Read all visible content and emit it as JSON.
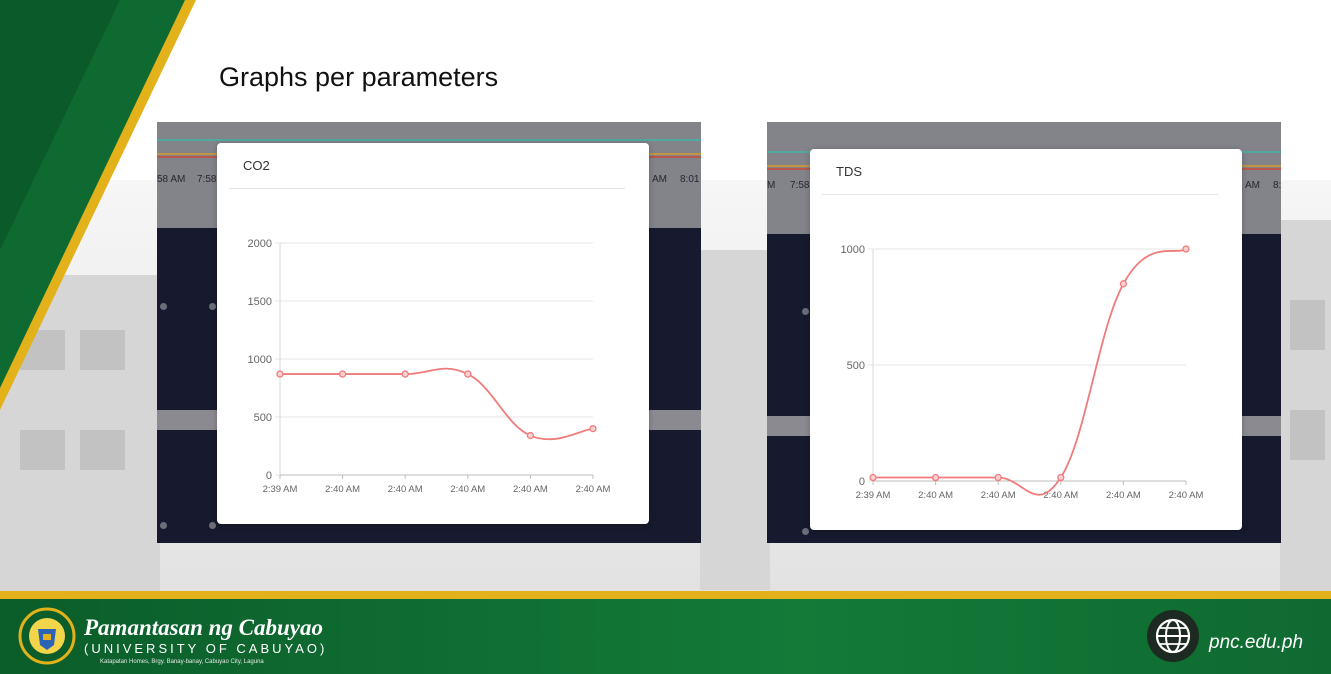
{
  "slide": {
    "title": "Graphs per parameters"
  },
  "background_chart": {
    "left_ticks": [
      "58 AM",
      "7:58",
      "AM",
      "8:01"
    ],
    "right_ticks": [
      "M",
      "7:58",
      "AM",
      "8:"
    ]
  },
  "footer": {
    "university_name": "Pamantasan ng Cabuyao",
    "university_english": "(UNIVERSITY OF CABUYAO)",
    "address": "Katapatan Homes, Brgy. Banay-banay, Cabuyao City, Laguna",
    "website": "pnc.edu.ph"
  },
  "colors": {
    "line": "#f07b7b",
    "green": "#137a38",
    "gold": "#e3b21a"
  },
  "chart_data": [
    {
      "type": "line",
      "title": "CO2",
      "categories": [
        "2:39 AM",
        "2:40 AM",
        "2:40 AM",
        "2:40 AM",
        "2:40 AM",
        "2:40 AM"
      ],
      "series": [
        {
          "values": [
            870,
            870,
            870,
            870,
            340,
            400
          ]
        }
      ],
      "ylim": [
        0,
        2000
      ],
      "yticks": [
        "0",
        "500",
        "1000",
        "1500",
        "2000"
      ],
      "grid": true
    },
    {
      "type": "line",
      "title": "TDS",
      "categories": [
        "2:39 AM",
        "2:40 AM",
        "2:40 AM",
        "2:40 AM",
        "2:40 AM",
        "2:40 AM"
      ],
      "series": [
        {
          "values": [
            15,
            15,
            15,
            15,
            850,
            1000
          ]
        }
      ],
      "ylim": [
        0,
        1000
      ],
      "yticks": [
        "0",
        "500",
        "1000"
      ],
      "grid": true
    }
  ]
}
